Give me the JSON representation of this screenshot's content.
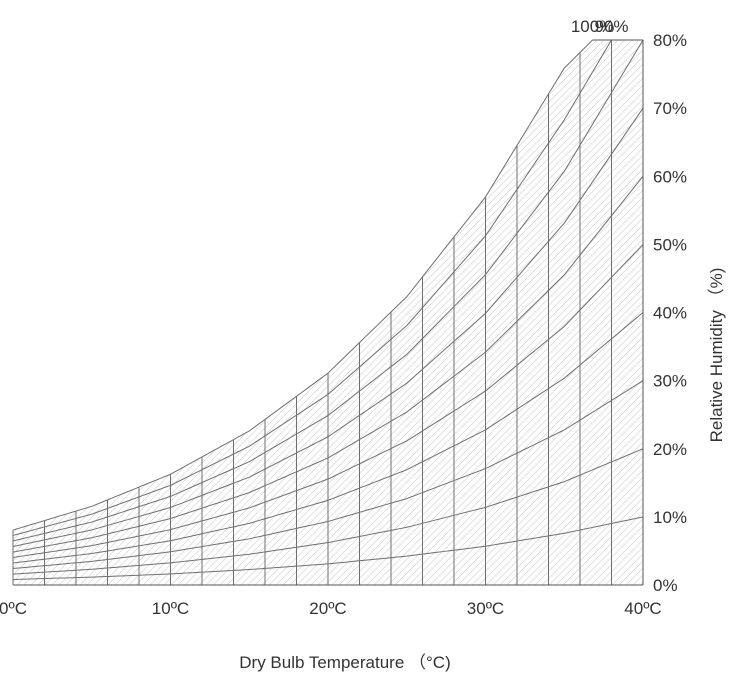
{
  "chart_data": {
    "type": "line",
    "title": "",
    "xlabel": "Dry Bulb Temperature （°C)",
    "ylabel": "Relative Humidity （%)",
    "x_ticks": [
      "0ºC",
      "10ºC",
      "20ºC",
      "30ºC",
      "40ºC"
    ],
    "rh_labels": [
      "0%",
      "10%",
      "20%",
      "30%",
      "40%",
      "50%",
      "60%",
      "70%",
      "80%",
      "90%",
      "100%"
    ],
    "xlim": [
      0,
      40
    ],
    "x_grid_step": 2,
    "grid": true,
    "series": [
      {
        "name": "0%",
        "x": [
          0,
          40
        ],
        "y": [
          0,
          0
        ]
      },
      {
        "name": "10%",
        "x": [
          0,
          5,
          10,
          15,
          20,
          25,
          30,
          35,
          40
        ],
        "y": [
          0.38,
          0.54,
          0.76,
          1.06,
          1.45,
          1.98,
          2.66,
          3.55,
          4.67
        ]
      },
      {
        "name": "20%",
        "x": [
          0,
          5,
          10,
          15,
          20,
          25,
          30,
          35,
          40
        ],
        "y": [
          0.75,
          1.08,
          1.52,
          2.11,
          2.91,
          3.96,
          5.33,
          7.09,
          9.35
        ]
      },
      {
        "name": "30%",
        "x": [
          0,
          5,
          10,
          15,
          20,
          25,
          30,
          35,
          40
        ],
        "y": [
          1.13,
          1.62,
          2.28,
          3.17,
          4.36,
          5.93,
          7.99,
          10.64,
          14.02
        ]
      },
      {
        "name": "40%",
        "x": [
          0,
          5,
          10,
          15,
          20,
          25,
          30,
          35,
          40
        ],
        "y": [
          1.51,
          2.16,
          3.04,
          4.23,
          5.81,
          7.91,
          10.65,
          14.19,
          18.7
        ]
      },
      {
        "name": "50%",
        "x": [
          0,
          5,
          10,
          15,
          20,
          25,
          30,
          35,
          40
        ],
        "y": [
          1.89,
          2.7,
          3.8,
          5.29,
          7.27,
          9.89,
          13.31,
          17.74,
          23.37
        ]
      },
      {
        "name": "60%",
        "x": [
          0,
          5,
          10,
          15,
          20,
          25,
          30,
          35,
          40
        ],
        "y": [
          2.26,
          3.24,
          4.56,
          6.34,
          8.72,
          11.87,
          15.98,
          21.28,
          28.05
        ]
      },
      {
        "name": "70%",
        "x": [
          0,
          5,
          10,
          15,
          20,
          25,
          30,
          35,
          40
        ],
        "y": [
          2.64,
          3.78,
          5.32,
          7.4,
          10.17,
          13.85,
          18.64,
          24.83,
          32.72
        ]
      },
      {
        "name": "80%",
        "x": [
          0,
          5,
          10,
          15,
          20,
          25,
          30,
          35,
          40
        ],
        "y": [
          3.02,
          4.32,
          6.08,
          8.46,
          11.63,
          15.82,
          21.3,
          28.38,
          37.4
        ]
      },
      {
        "name": "90%",
        "x": [
          0,
          5,
          10,
          15,
          20,
          25,
          30,
          35,
          38
        ],
        "y": [
          3.4,
          4.86,
          6.84,
          9.52,
          13.08,
          17.8,
          23.96,
          31.92,
          37.4
        ]
      },
      {
        "name": "100%",
        "x": [
          0,
          5,
          10,
          15,
          20,
          25,
          30,
          35,
          36.8
        ],
        "y": [
          3.77,
          5.4,
          7.6,
          10.57,
          14.54,
          19.78,
          26.63,
          35.47,
          37.4
        ]
      }
    ],
    "ylim": [
      0,
      37.4
    ],
    "colors": {
      "line": "#6f6f6f",
      "hatch": "#d0d0d0",
      "text": "#333333"
    }
  }
}
